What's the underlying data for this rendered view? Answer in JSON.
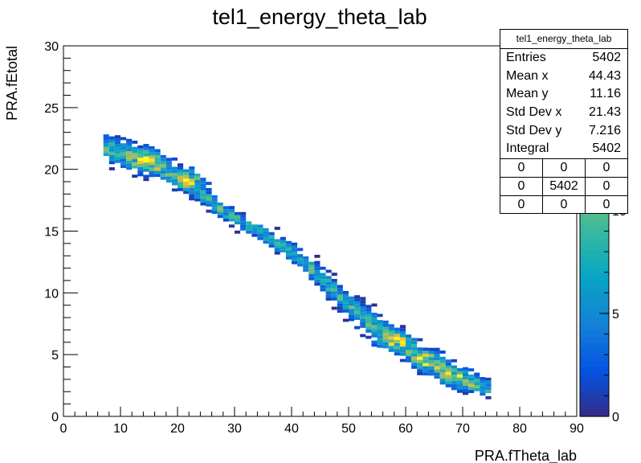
{
  "chart_data": {
    "type": "heatmap",
    "title": "tel1_energy_theta_lab",
    "xlabel": "PRA.fTheta_lab",
    "ylabel": "PRA.fEtotal",
    "xlim": [
      0,
      90
    ],
    "ylim": [
      0,
      30
    ],
    "x_ticks": [
      "0",
      "10",
      "20",
      "30",
      "40",
      "50",
      "60",
      "70",
      "80",
      "90"
    ],
    "y_ticks": [
      "0",
      "5",
      "10",
      "15",
      "20",
      "25",
      "30"
    ],
    "colorbar": {
      "range": [
        0,
        18
      ],
      "ticks": [
        "0",
        "5",
        "10"
      ]
    },
    "bins": {
      "x_width": 1,
      "y_width": 0.25
    },
    "band": {
      "description": "single diagonal kinematic band",
      "centerline": [
        [
          7.5,
          21.7
        ],
        [
          15,
          20.6
        ],
        [
          22,
          18.8
        ],
        [
          28,
          16.6
        ],
        [
          35,
          14.8
        ],
        [
          40,
          13.3
        ],
        [
          45,
          11.3
        ],
        [
          50,
          9.0
        ],
        [
          55,
          7.1
        ],
        [
          60,
          5.6
        ],
        [
          65,
          4.1
        ],
        [
          70,
          2.8
        ],
        [
          74,
          2.3
        ]
      ],
      "peak_regions": [
        [
          15,
          20.6
        ],
        [
          23,
          19.2
        ],
        [
          58,
          6.0
        ],
        [
          64,
          4.4
        ],
        [
          69,
          3.0
        ]
      ],
      "max_count": 18
    },
    "stats": {
      "title": "tel1_energy_theta_lab",
      "rows": [
        {
          "label": "Entries",
          "value": "5402"
        },
        {
          "label": "Mean x",
          "value": "44.43"
        },
        {
          "label": "Mean y",
          "value": "11.16"
        },
        {
          "label": "Std Dev x",
          "value": "21.43"
        },
        {
          "label": "Std Dev y",
          "value": "7.216"
        },
        {
          "label": "Integral",
          "value": "5402"
        }
      ],
      "overflow_grid": [
        [
          "0",
          "0",
          "0"
        ],
        [
          "0",
          "5402",
          "0"
        ],
        [
          "0",
          "0",
          "0"
        ]
      ]
    }
  }
}
